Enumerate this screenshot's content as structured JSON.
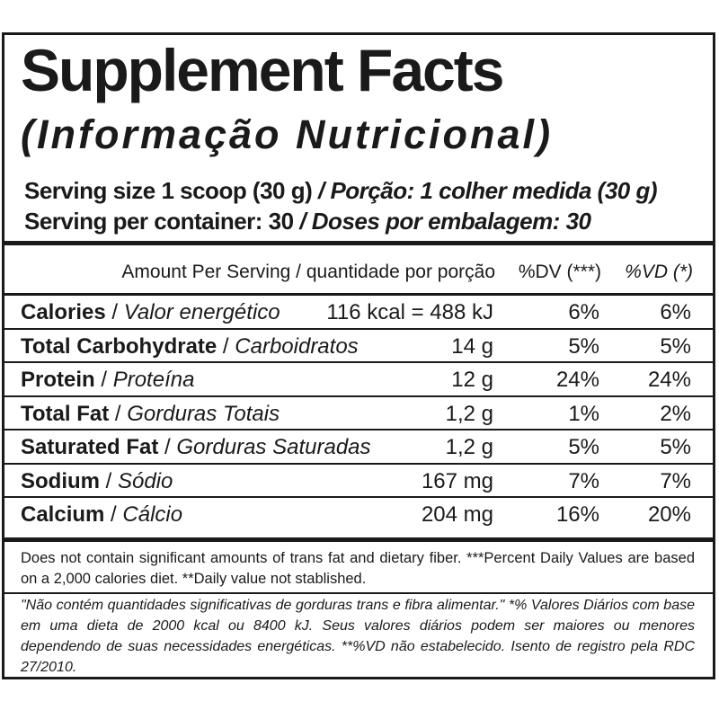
{
  "title": "Supplement Facts",
  "subtitle": "(Informação Nutricional)",
  "serving": {
    "size_en": "Serving size 1 scoop (30 g)",
    "size_pt": " / Porção: 1 colher medida (30 g)",
    "container_en": "Serving per container: 30",
    "container_pt": " / Doses por embalagem: 30"
  },
  "table": {
    "header": {
      "amount": "Amount Per Serving / quantidade por porção",
      "dv": "%DV (***)",
      "vd": "%VD (*)"
    },
    "rows": [
      {
        "name_en": "Calories",
        "name_pt": "Valor energético",
        "amount": "116 kcal = 488 kJ",
        "dv": "6%",
        "vd": "6%"
      },
      {
        "name_en": "Total Carbohydrate",
        "name_pt": "Carboidratos",
        "amount": "14 g",
        "dv": "5%",
        "vd": "5%"
      },
      {
        "name_en": "Protein",
        "name_pt": "Proteína",
        "amount": "12 g",
        "dv": "24%",
        "vd": "24%"
      },
      {
        "name_en": "Total Fat",
        "name_pt": "Gorduras Totais",
        "amount": "1,2 g",
        "dv": "1%",
        "vd": "2%"
      },
      {
        "name_en": "Saturated Fat",
        "name_pt": "Gorduras Saturadas",
        "amount": "1,2 g",
        "dv": "5%",
        "vd": "5%"
      },
      {
        "name_en": "Sodium",
        "name_pt": "Sódio",
        "amount": "167 mg",
        "dv": "7%",
        "vd": "7%"
      },
      {
        "name_en": "Calcium",
        "name_pt": "Cálcio",
        "amount": "204 mg",
        "dv": "16%",
        "vd": "20%"
      }
    ]
  },
  "footnotes": {
    "english": "Does not contain significant amounts of trans fat and dietary fiber. ***Percent Daily Values are based on a 2,000 calories diet. **Daily value not stablished.",
    "portuguese": "\"Não contém quantidades significativas de gorduras trans e fibra alimentar.\" *% Valores Diários com base em uma dieta de 2000 kcal ou 8400 kJ. Seus valores diários podem ser maiores ou menores dependendo de suas necessidades energéticas. **%VD não estabelecido. Isento de registro pela RDC 27/2010."
  }
}
